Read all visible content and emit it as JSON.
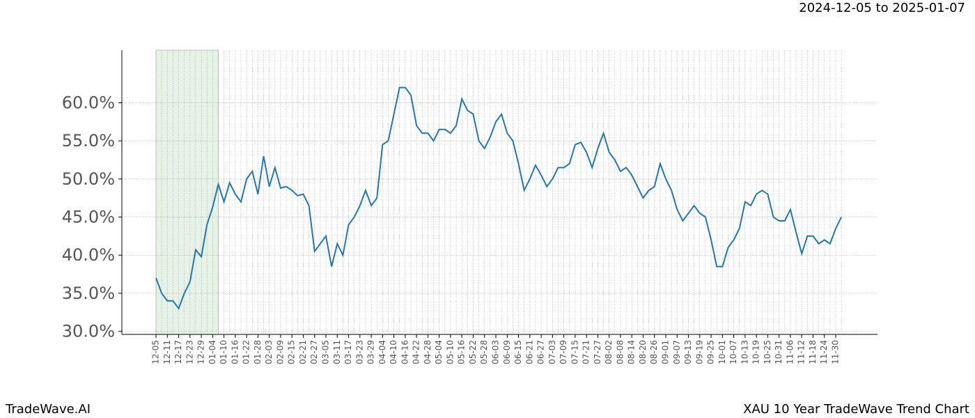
{
  "chart_data": {
    "type": "line",
    "subtitle": "2024-12-05 to 2025-01-07",
    "footer_left": "TradeWave.AI",
    "footer_right": "XAU 10 Year TradeWave Trend Chart",
    "categories": [
      "12-05",
      null,
      "12-11",
      null,
      "12-17",
      null,
      "12-23",
      null,
      "12-29",
      null,
      "01-04",
      null,
      "01-10",
      null,
      "01-16",
      null,
      "01-22",
      null,
      "01-28",
      null,
      "02-03",
      null,
      "02-09",
      null,
      "02-15",
      null,
      "02-21",
      null,
      "02-27",
      null,
      "03-05",
      null,
      "03-11",
      null,
      "03-17",
      null,
      "03-23",
      null,
      "03-29",
      null,
      "04-04",
      null,
      "04-10",
      null,
      "04-16",
      null,
      "04-22",
      null,
      "04-28",
      null,
      "05-04",
      null,
      "05-10",
      null,
      "05-16",
      null,
      "05-22",
      null,
      "05-28",
      null,
      "06-03",
      null,
      "06-09",
      null,
      "06-15",
      null,
      "06-21",
      null,
      "06-27",
      null,
      "07-03",
      null,
      "07-09",
      null,
      "07-15",
      null,
      "07-21",
      null,
      "07-27",
      null,
      "08-02",
      null,
      "08-08",
      null,
      "08-14",
      null,
      "08-20",
      null,
      "08-26",
      null,
      "09-01",
      null,
      "09-07",
      null,
      "09-13",
      null,
      "09-19",
      null,
      "09-25",
      null,
      "10-01",
      null,
      "10-07",
      null,
      "10-13",
      null,
      "10-19",
      null,
      "10-25",
      null,
      "10-31",
      null,
      "11-06",
      null,
      "11-12",
      null,
      "11-18",
      null,
      "11-24",
      null,
      "11-30",
      null
    ],
    "series": [
      {
        "color": "#1f77b4",
        "values": [
          37,
          35,
          34,
          34,
          33,
          35,
          36.5,
          40.7,
          39.8,
          44,
          46.3,
          49.3,
          47,
          49.5,
          48,
          47,
          50,
          51,
          48,
          53,
          49,
          51.5,
          48.8,
          49,
          48.5,
          47.8,
          48,
          46.5,
          40.5,
          41.5,
          42.5,
          38.5,
          41.5,
          40,
          44,
          45,
          46.5,
          48.5,
          46.5,
          47.5,
          54.5,
          55,
          58.5,
          62,
          62,
          61,
          57,
          56,
          56,
          55,
          56.5,
          56.5,
          56,
          57,
          60.5,
          59,
          58.5,
          55,
          54,
          55.5,
          57.5,
          58.5,
          56,
          55,
          52,
          48.5,
          50,
          51.8,
          50.5,
          49,
          50,
          51.5,
          51.5,
          52,
          54.5,
          54.8,
          53.5,
          51.5,
          54,
          56,
          53.5,
          52.5,
          51,
          51.5,
          50.5,
          49,
          47.5,
          48.5,
          49,
          52,
          50,
          48.5,
          46,
          44.5,
          45.5,
          46.5,
          45.5,
          45,
          42,
          38.5,
          38.5,
          41,
          42,
          43.5,
          47,
          46.5,
          48,
          48.5,
          48,
          45,
          44.5,
          44.5,
          46,
          43,
          40.2,
          42.5,
          42.5,
          41.5,
          42,
          41.5,
          43.5,
          45
        ]
      }
    ],
    "highlight": [
      0,
      11
    ],
    "highlight_color": "#e6f2e6",
    "ylim": [
      29.6,
      66.9
    ],
    "yticks": [
      {
        "value": 30,
        "label": "30.0%"
      },
      {
        "value": 35,
        "label": "35.0%"
      },
      {
        "value": 40,
        "label": "40.0%"
      },
      {
        "value": 45,
        "label": "45.0%"
      },
      {
        "value": 50,
        "label": "50.0%"
      },
      {
        "value": 55,
        "label": "55.0%"
      },
      {
        "value": 60,
        "label": "60.0%"
      }
    ],
    "grid": true
  }
}
